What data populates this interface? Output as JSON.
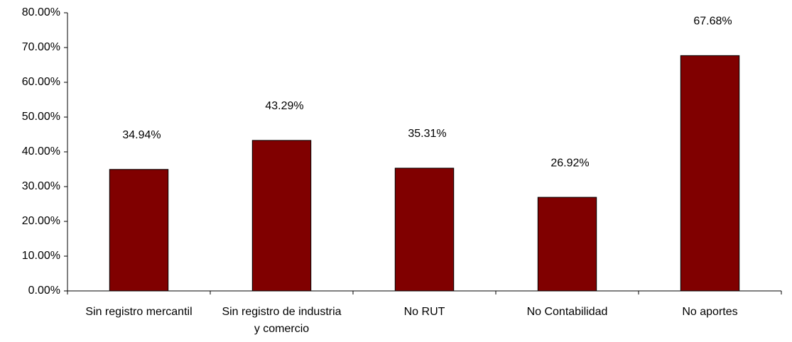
{
  "chart_data": {
    "type": "bar",
    "categories": [
      "Sin registro mercantil",
      "Sin registro de industria y comercio",
      "No RUT",
      "No Contabilidad",
      "No aportes"
    ],
    "values": [
      34.94,
      43.29,
      35.31,
      26.92,
      67.68
    ],
    "value_labels": [
      "34.94%",
      "43.29%",
      "35.31%",
      "26.92%",
      "67.68%"
    ],
    "color": "#800000",
    "ylim": [
      0,
      80
    ],
    "yticks": [
      {
        "value": 0,
        "label": "0.00%"
      },
      {
        "value": 10,
        "label": "10.00%"
      },
      {
        "value": 20,
        "label": "20.00%"
      },
      {
        "value": 30,
        "label": "30.00%"
      },
      {
        "value": 40,
        "label": "40.00%"
      },
      {
        "value": 50,
        "label": "50.00%"
      },
      {
        "value": 60,
        "label": "60.00%"
      },
      {
        "value": 70,
        "label": "70.00%"
      },
      {
        "value": 80,
        "label": "80.00%"
      }
    ],
    "grid": false
  }
}
